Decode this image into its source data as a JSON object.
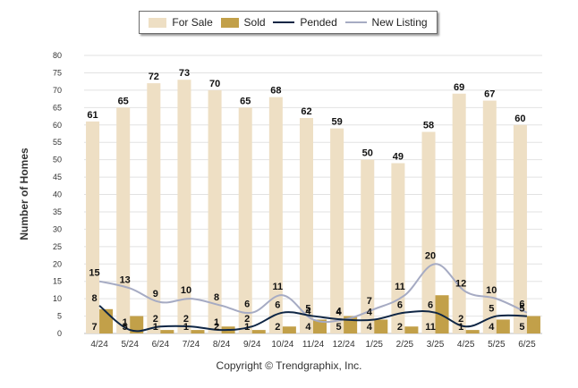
{
  "chart_data": {
    "type": "bar",
    "ylabel": "Number of Homes",
    "ylim": [
      0,
      80
    ],
    "ytick_step": 5,
    "grid": true,
    "legend_position": "top-center",
    "categories": [
      "4/24",
      "5/24",
      "6/24",
      "7/24",
      "8/24",
      "9/24",
      "10/24",
      "11/24",
      "12/24",
      "1/25",
      "2/25",
      "3/25",
      "4/25",
      "5/25",
      "6/25"
    ],
    "series": [
      {
        "name": "For Sale",
        "kind": "bar",
        "color": "#eedfc4",
        "values": [
          61,
          65,
          72,
          73,
          70,
          65,
          68,
          62,
          59,
          50,
          49,
          58,
          69,
          67,
          60
        ]
      },
      {
        "name": "Sold",
        "kind": "bar",
        "color": "#c2a049",
        "values": [
          7,
          5,
          1,
          1,
          2,
          1,
          2,
          4,
          5,
          4,
          2,
          11,
          1,
          4,
          5
        ]
      },
      {
        "name": "Pended",
        "kind": "line",
        "color": "#0f2645",
        "values": [
          8,
          1,
          2,
          2,
          1,
          2,
          6,
          5,
          4,
          4,
          6,
          6,
          2,
          5,
          5
        ]
      },
      {
        "name": "New Listing",
        "kind": "line",
        "color": "#a6abc3",
        "values": [
          15,
          13,
          9,
          10,
          8,
          6,
          11,
          4,
          4,
          7,
          11,
          20,
          12,
          10,
          6
        ]
      }
    ]
  },
  "copyright": "Copyright © Trendgraphix, Inc."
}
